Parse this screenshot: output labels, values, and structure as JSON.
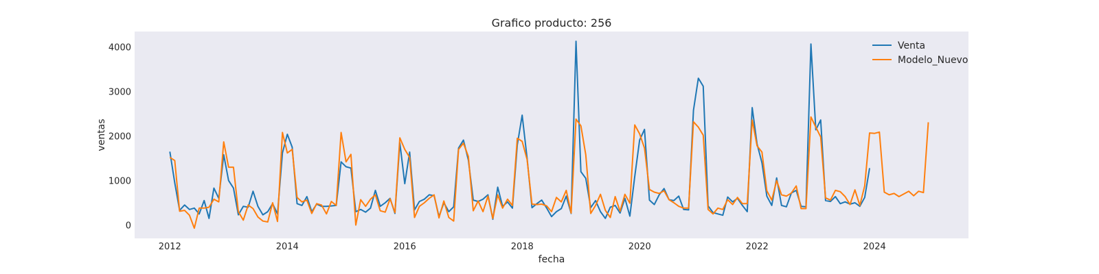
{
  "chart_data": {
    "type": "line",
    "title": "Grafico producto: 256",
    "xlabel": "fecha",
    "ylabel": "ventas",
    "xlim": [
      2011.4,
      2025.6
    ],
    "ylim": [
      -300,
      4350
    ],
    "x_ticks": [
      2012,
      2014,
      2016,
      2018,
      2020,
      2022,
      2024
    ],
    "y_ticks": [
      0,
      1000,
      2000,
      3000,
      4000
    ],
    "grid": false,
    "legend": "top-right",
    "background": "#eaeaf2",
    "series": [
      {
        "name": "Venta",
        "color": "#1f77b4",
        "x_start": 2012.0,
        "x_step": 0.08333,
        "values": [
          1650,
          950,
          330,
          450,
          350,
          380,
          250,
          550,
          150,
          830,
          600,
          1580,
          1000,
          830,
          230,
          420,
          400,
          760,
          420,
          230,
          300,
          480,
          250,
          1620,
          2040,
          1750,
          480,
          440,
          640,
          300,
          470,
          420,
          420,
          430,
          440,
          1420,
          1310,
          1280,
          300,
          350,
          290,
          380,
          780,
          420,
          500,
          600,
          260,
          1850,
          930,
          1640,
          340,
          530,
          580,
          680,
          660,
          190,
          500,
          300,
          410,
          1730,
          1910,
          1460,
          560,
          530,
          580,
          680,
          130,
          850,
          420,
          520,
          380,
          1800,
          2470,
          1500,
          390,
          480,
          560,
          380,
          190,
          300,
          370,
          650,
          260,
          4130,
          1200,
          1050,
          390,
          550,
          300,
          150,
          400,
          440,
          270,
          600,
          200,
          1090,
          1910,
          2150,
          560,
          460,
          680,
          820,
          570,
          550,
          650,
          350,
          340,
          2580,
          3300,
          3120,
          430,
          280,
          250,
          220,
          630,
          520,
          600,
          440,
          300,
          2640,
          1820,
          1400,
          650,
          440,
          1060,
          440,
          410,
          720,
          780,
          420,
          410,
          4070,
          2140,
          2360,
          550,
          530,
          640,
          480,
          520,
          470,
          500,
          420,
          620,
          1280
        ]
      },
      {
        "name": "Modelo_Nuevo",
        "color": "#ff7f0e",
        "x_start": 2012.0,
        "x_step": 0.08333,
        "values": [
          1520,
          1450,
          310,
          330,
          220,
          -70,
          380,
          380,
          400,
          580,
          520,
          1870,
          1300,
          1300,
          300,
          110,
          450,
          370,
          180,
          90,
          70,
          500,
          80,
          2080,
          1620,
          1700,
          620,
          520,
          560,
          260,
          480,
          450,
          250,
          530,
          440,
          2080,
          1420,
          1590,
          0,
          570,
          420,
          580,
          680,
          320,
          290,
          590,
          280,
          1960,
          1700,
          1520,
          170,
          420,
          500,
          600,
          680,
          160,
          540,
          170,
          90,
          1700,
          1840,
          1540,
          320,
          540,
          300,
          650,
          150,
          680,
          380,
          580,
          440,
          1950,
          1880,
          1470,
          470,
          460,
          470,
          430,
          300,
          620,
          520,
          780,
          270,
          2380,
          2230,
          1580,
          260,
          440,
          690,
          330,
          170,
          640,
          310,
          690,
          490,
          2250,
          2050,
          1730,
          800,
          740,
          710,
          770,
          570,
          500,
          420,
          380,
          380,
          2320,
          2200,
          2020,
          350,
          250,
          380,
          350,
          570,
          460,
          620,
          480,
          480,
          2360,
          1780,
          1640,
          770,
          560,
          1000,
          680,
          650,
          720,
          880,
          370,
          370,
          2430,
          2200,
          1980,
          610,
          560,
          780,
          750,
          640,
          460,
          790,
          440,
          880,
          2070,
          2060,
          2090,
          740,
          680,
          710,
          640,
          700,
          760,
          660,
          760,
          730,
          2310
        ]
      }
    ]
  }
}
